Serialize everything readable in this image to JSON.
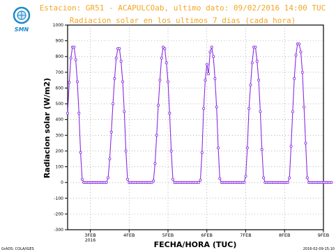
{
  "header": {
    "title": "Estacion: GR51 - ACAPULCOab, ultimo dato: 09/02/2016 14:00 TUC",
    "subtitle": "Radiacion solar en los ultimos 7 dias (cada hora)",
    "title_color": "#f5a623"
  },
  "logo": {
    "text": "SMN",
    "icon": "globe-icon",
    "color": "#1e88c8"
  },
  "footer": {
    "left": "GrADS: COLA/IGES",
    "right": "2016-02-09-15:10"
  },
  "chart_data": {
    "type": "line",
    "xlabel": "FECHA/HORA (TUC)",
    "ylabel": "Radiacion solar (W/m2)",
    "ylim": [
      -300,
      1000
    ],
    "yticks": [
      -300,
      -200,
      -100,
      0,
      100,
      200,
      300,
      400,
      500,
      600,
      700,
      800,
      900,
      1000
    ],
    "xlim": [
      0,
      158
    ],
    "xticks": [
      {
        "pos": 14,
        "label": "3FEB",
        "sub": "2016"
      },
      {
        "pos": 38,
        "label": "4FEB",
        "sub": ""
      },
      {
        "pos": 62,
        "label": "5FEB",
        "sub": ""
      },
      {
        "pos": 86,
        "label": "6FEB",
        "sub": ""
      },
      {
        "pos": 110,
        "label": "7FEB",
        "sub": ""
      },
      {
        "pos": 134,
        "label": "8FEB",
        "sub": ""
      },
      {
        "pos": 158,
        "label": "9FEB",
        "sub": ""
      }
    ],
    "grid": true,
    "line_color": "#8a2be2",
    "series": [
      {
        "values": [
          440,
          635,
          790,
          860,
          860,
          780,
          640,
          440,
          190,
          20,
          0,
          0,
          0,
          0,
          0,
          0,
          0,
          0,
          0,
          0,
          0,
          0,
          0,
          0,
          0,
          30,
          150,
          320,
          500,
          660,
          790,
          850,
          850,
          770,
          640,
          450,
          200,
          20,
          0,
          0,
          0,
          0,
          0,
          0,
          0,
          0,
          0,
          0,
          0,
          0,
          0,
          0,
          0,
          10,
          120,
          300,
          490,
          650,
          790,
          860,
          850,
          760,
          640,
          440,
          200,
          20,
          0,
          0,
          0,
          0,
          0,
          0,
          0,
          0,
          0,
          0,
          0,
          0,
          0,
          0,
          0,
          0,
          15,
          190,
          470,
          650,
          750,
          690,
          830,
          860,
          800,
          660,
          480,
          220,
          25,
          0,
          0,
          0,
          0,
          0,
          0,
          0,
          0,
          0,
          0,
          0,
          0,
          0,
          0,
          0,
          40,
          220,
          470,
          620,
          760,
          860,
          860,
          770,
          650,
          450,
          210,
          30,
          0,
          0,
          0,
          0,
          0,
          0,
          0,
          0,
          0,
          0,
          0,
          0,
          0,
          0,
          0,
          30,
          230,
          450,
          660,
          810,
          880,
          880,
          830,
          700,
          480,
          250,
          30,
          0,
          0,
          0,
          0,
          0,
          0,
          0,
          0,
          0,
          0,
          0,
          0,
          0,
          0,
          0
        ]
      }
    ]
  }
}
